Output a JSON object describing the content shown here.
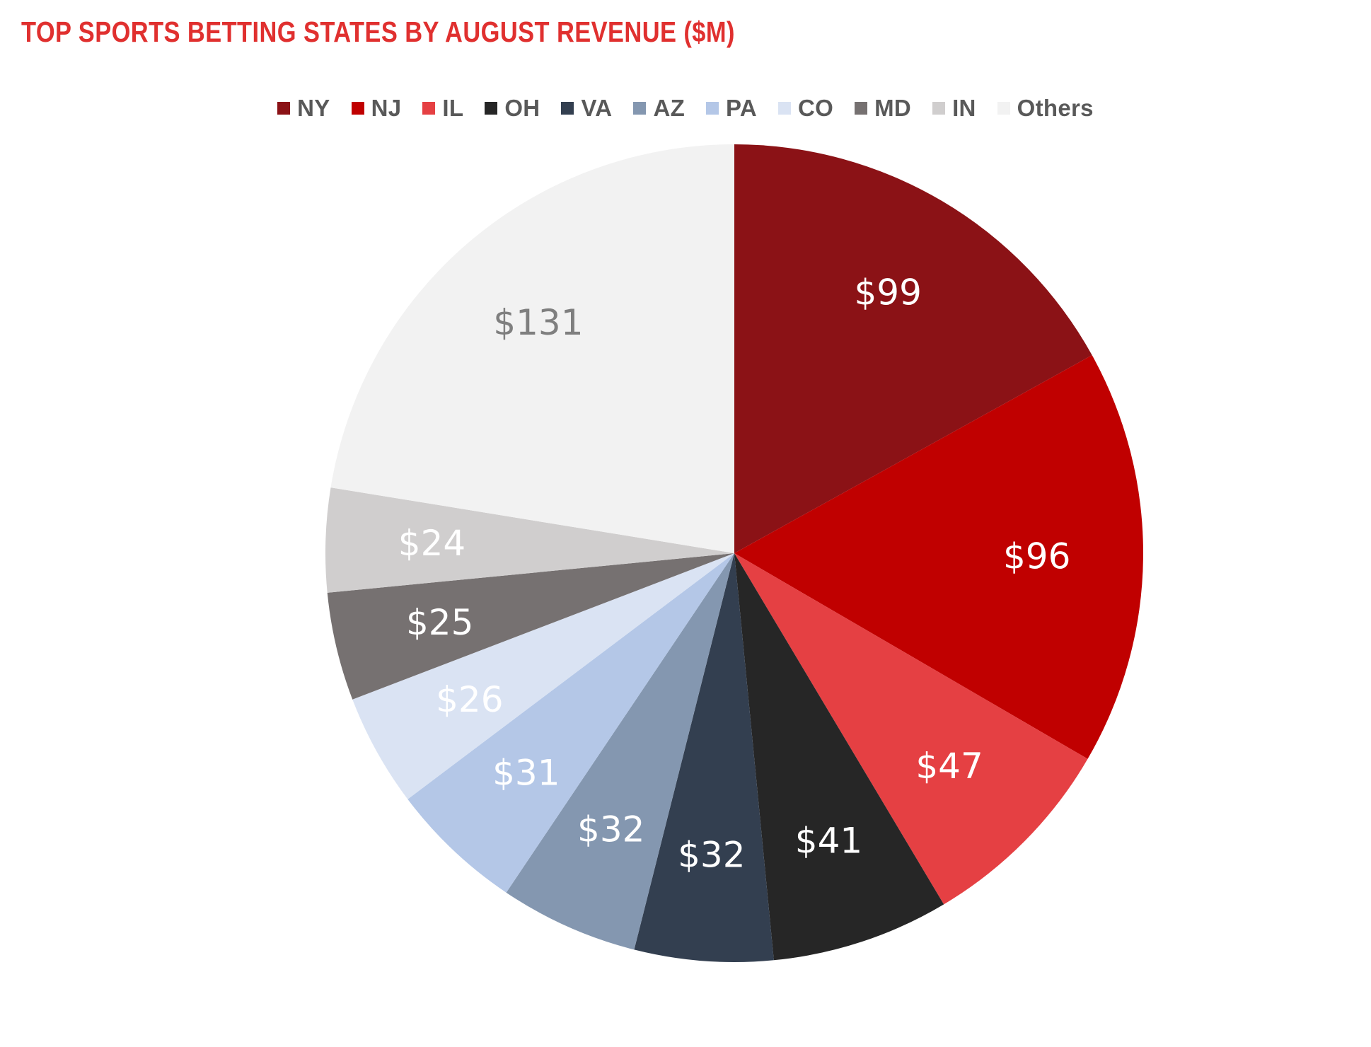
{
  "chart_data": {
    "type": "pie",
    "title": "TOP SPORTS BETTING STATES BY AUGUST REVENUE ($M)",
    "legend_position": "top",
    "value_prefix": "$",
    "slices": [
      {
        "label": "NY",
        "value": 99,
        "color": "#8b1216",
        "label_color": "#ffffff"
      },
      {
        "label": "NJ",
        "value": 96,
        "color": "#c00000",
        "label_color": "#ffffff"
      },
      {
        "label": "IL",
        "value": 47,
        "color": "#e54043",
        "label_color": "#ffffff"
      },
      {
        "label": "OH",
        "value": 41,
        "color": "#262626",
        "label_color": "#ffffff"
      },
      {
        "label": "VA",
        "value": 32,
        "color": "#333f50",
        "label_color": "#ffffff"
      },
      {
        "label": "AZ",
        "value": 32,
        "color": "#8497b0",
        "label_color": "#ffffff"
      },
      {
        "label": "PA",
        "value": 31,
        "color": "#b4c7e7",
        "label_color": "#ffffff"
      },
      {
        "label": "CO",
        "value": 26,
        "color": "#dae3f3",
        "label_color": "#ffffff"
      },
      {
        "label": "MD",
        "value": 25,
        "color": "#767171",
        "label_color": "#ffffff"
      },
      {
        "label": "IN",
        "value": 24,
        "color": "#d0cece",
        "label_color": "#ffffff"
      },
      {
        "label": "Others",
        "value": 131,
        "color": "#f2f2f2",
        "label_color": "#7f7f7f"
      }
    ]
  },
  "colors": {
    "title": "#e0302f",
    "legend_text": "#595959"
  }
}
